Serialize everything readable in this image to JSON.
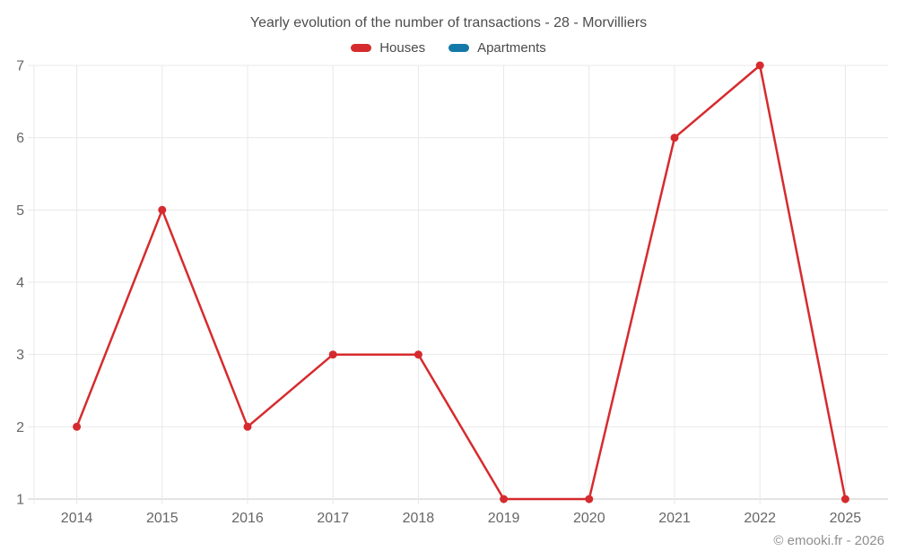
{
  "footer": "© emooki.fr - 2026",
  "colors": {
    "houses": "#d62b2e",
    "apartments": "#1478a8",
    "grid": "#e8e8e8",
    "axis_line": "#c8c8c8",
    "tick_text": "#666666",
    "title_text": "#4d4d4d",
    "footer_text": "#8f8f8f"
  },
  "chart_data": {
    "type": "line",
    "title": "Yearly evolution of the number of transactions - 28 - Morvilliers",
    "categories": [
      "2014",
      "2015",
      "2016",
      "2017",
      "2018",
      "2019",
      "2020",
      "2021",
      "2022",
      "2025"
    ],
    "series": [
      {
        "name": "Houses",
        "color": "#d62b2e",
        "values": [
          2,
          5,
          2,
          3,
          3,
          1,
          1,
          6,
          7,
          1
        ]
      },
      {
        "name": "Apartments",
        "color": "#1478a8",
        "values": []
      }
    ],
    "xlabel": "",
    "ylabel": "",
    "ylim": [
      1,
      7
    ],
    "yticks": [
      1,
      2,
      3,
      4,
      5,
      6,
      7
    ],
    "grid": true,
    "legend_position": "top"
  }
}
